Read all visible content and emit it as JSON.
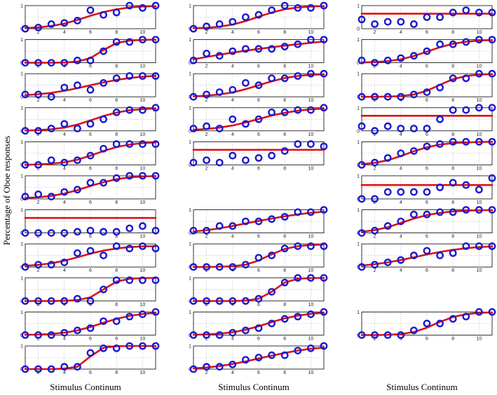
{
  "figure": {
    "y_axis_label": "Percentage of Oboe responses",
    "x_axis_labels": [
      "Stimulus Continum",
      "Stimulus Continum",
      "Stimulus Continum"
    ]
  },
  "colors": {
    "fit": "#dd1111",
    "marker": "#1a1ad0",
    "axis": "#000000",
    "grid": "#9a9a9a"
  },
  "chart_data": {
    "type": "scatter",
    "description": "Grid of psychometric functions: per-panel response proportions (blue circles) with fitted curves (red) over an 11-step stimulus continuum",
    "x": [
      1,
      2,
      3,
      4,
      5,
      6,
      7,
      8,
      9,
      10,
      11
    ],
    "xlim": [
      1,
      11
    ],
    "ylim": [
      0,
      1
    ],
    "x_ticks": [
      2,
      4,
      6,
      8,
      10
    ],
    "y_ticks": [
      0,
      1
    ],
    "columns": [
      [
        {
          "points": [
            0,
            0.05,
            0.2,
            0.25,
            0.35,
            0.8,
            0.6,
            0.7,
            1,
            0.9,
            1
          ],
          "fit": [
            0.03,
            0.06,
            0.12,
            0.22,
            0.38,
            0.56,
            0.72,
            0.84,
            0.92,
            0.96,
            0.98
          ]
        },
        {
          "points": [
            0,
            0,
            0,
            0,
            0.1,
            0.1,
            0.5,
            0.9,
            0.9,
            1,
            1
          ],
          "fit": [
            0,
            0,
            0,
            0.01,
            0.05,
            0.2,
            0.55,
            0.85,
            0.96,
            0.99,
            1
          ]
        },
        {
          "points": [
            0.1,
            0.1,
            0,
            0.4,
            0.5,
            0.3,
            0.6,
            0.8,
            0.9,
            0.9,
            0.9
          ],
          "fit": [
            0.07,
            0.11,
            0.17,
            0.26,
            0.37,
            0.5,
            0.62,
            0.73,
            0.81,
            0.87,
            0.91
          ]
        },
        {
          "points": [
            0,
            0,
            0.1,
            0.3,
            0.1,
            0.3,
            0.5,
            0.8,
            0.9,
            0.9,
            1
          ],
          "fit": [
            0.01,
            0.03,
            0.07,
            0.14,
            0.27,
            0.45,
            0.64,
            0.79,
            0.89,
            0.94,
            0.97
          ]
        },
        {
          "points": [
            0,
            0,
            0.2,
            0.1,
            0.2,
            0.4,
            0.7,
            0.9,
            0.9,
            0.9,
            0.9
          ],
          "fit": [
            0,
            0.02,
            0.05,
            0.11,
            0.22,
            0.4,
            0.6,
            0.77,
            0.88,
            0.94,
            0.97
          ]
        },
        {
          "points": [
            0.1,
            0.2,
            0.1,
            0.3,
            0.4,
            0.7,
            0.7,
            0.9,
            1,
            1,
            1
          ],
          "fit": [
            0.04,
            0.07,
            0.13,
            0.23,
            0.38,
            0.56,
            0.72,
            0.85,
            0.93,
            0.97,
            0.99
          ]
        },
        {
          "points": [
            0,
            0,
            0,
            0,
            0.05,
            0.1,
            0.05,
            0.05,
            0.2,
            0.3,
            0.1
          ],
          "fit": [
            0.65,
            0.65,
            0.65,
            0.65,
            0.65,
            0.65,
            0.65,
            0.65,
            0.65,
            0.65,
            0.65
          ]
        },
        {
          "points": [
            0,
            0.1,
            0.1,
            0.2,
            0.6,
            0.7,
            0.5,
            0.9,
            0.8,
            0.9,
            0.8
          ],
          "fit": [
            0.05,
            0.09,
            0.16,
            0.27,
            0.42,
            0.58,
            0.71,
            0.8,
            0.86,
            0.89,
            0.9
          ]
        },
        {
          "points": [
            0,
            0,
            0,
            0,
            0.1,
            0,
            0.5,
            0.9,
            0.9,
            0.9,
            0.9
          ],
          "fit": [
            0,
            0,
            0,
            0.01,
            0.04,
            0.16,
            0.5,
            0.84,
            0.96,
            0.99,
            1
          ]
        },
        {
          "points": [
            0,
            0,
            0,
            0.1,
            0.2,
            0.3,
            0.6,
            0.6,
            0.8,
            0.9,
            1
          ],
          "fit": [
            0.01,
            0.02,
            0.05,
            0.1,
            0.2,
            0.35,
            0.53,
            0.7,
            0.83,
            0.91,
            0.96
          ]
        },
        {
          "points": [
            0,
            0,
            0,
            0.1,
            0.1,
            0.7,
            0.9,
            0.9,
            1,
            1,
            1
          ],
          "fit": [
            0,
            0,
            0,
            0.02,
            0.1,
            0.55,
            0.92,
            0.99,
            1,
            1,
            1
          ]
        }
      ],
      [
        {
          "points": [
            0,
            0.1,
            0.2,
            0.3,
            0.5,
            0.6,
            0.8,
            1,
            0.9,
            0.9,
            1
          ],
          "fit": [
            0.02,
            0.04,
            0.09,
            0.18,
            0.33,
            0.52,
            0.7,
            0.84,
            0.92,
            0.96,
            0.98
          ]
        },
        {
          "points": [
            0.1,
            0.4,
            0.3,
            0.5,
            0.6,
            0.6,
            0.6,
            0.7,
            0.8,
            1,
            1
          ],
          "fit": [
            0.15,
            0.25,
            0.35,
            0.44,
            0.52,
            0.6,
            0.67,
            0.74,
            0.8,
            0.86,
            0.92
          ]
        },
        {
          "points": [
            0,
            0.1,
            0.2,
            0.3,
            0.6,
            0.5,
            0.8,
            0.8,
            0.9,
            1,
            1
          ],
          "fit": [
            0.02,
            0.05,
            0.1,
            0.19,
            0.33,
            0.5,
            0.67,
            0.81,
            0.9,
            0.95,
            0.97
          ]
        },
        {
          "points": [
            0.1,
            0.2,
            0.1,
            0.5,
            0.3,
            0.5,
            0.8,
            0.8,
            0.9,
            0.9,
            1
          ],
          "fit": [
            0.04,
            0.08,
            0.14,
            0.23,
            0.36,
            0.51,
            0.66,
            0.78,
            0.87,
            0.93,
            0.96
          ]
        },
        {
          "points": [
            0.1,
            0.2,
            0.1,
            0.4,
            0.2,
            0.3,
            0.4,
            0.6,
            0.9,
            0.9,
            0.8
          ],
          "fit": [
            0.65,
            0.65,
            0.65,
            0.65,
            0.65,
            0.65,
            0.65,
            0.65,
            0.65,
            0.65,
            0.65
          ]
        },
        null,
        {
          "points": [
            0.1,
            0.1,
            0.3,
            0.3,
            0.5,
            0.5,
            0.6,
            0.7,
            0.9,
            0.9,
            1
          ],
          "fit": [
            0.06,
            0.12,
            0.2,
            0.3,
            0.41,
            0.52,
            0.62,
            0.72,
            0.8,
            0.87,
            0.92
          ]
        },
        {
          "points": [
            0,
            0,
            0,
            0,
            0.1,
            0.4,
            0.5,
            0.8,
            0.9,
            0.9,
            0.9
          ],
          "fit": [
            0,
            0,
            0.01,
            0.03,
            0.1,
            0.28,
            0.55,
            0.78,
            0.9,
            0.95,
            0.97
          ]
        },
        {
          "points": [
            0,
            0,
            0,
            0,
            0,
            0.1,
            0.4,
            0.8,
            1,
            1,
            1
          ],
          "fit": [
            0,
            0,
            0,
            0,
            0.02,
            0.1,
            0.4,
            0.8,
            0.96,
            0.99,
            1
          ]
        },
        {
          "points": [
            0,
            0,
            0,
            0.1,
            0.2,
            0.3,
            0.5,
            0.7,
            0.8,
            0.9,
            1
          ],
          "fit": [
            0.01,
            0.03,
            0.06,
            0.12,
            0.23,
            0.38,
            0.56,
            0.72,
            0.84,
            0.92,
            0.96
          ]
        },
        {
          "points": [
            0,
            0.1,
            0.1,
            0.2,
            0.4,
            0.5,
            0.6,
            0.6,
            0.8,
            0.9,
            1
          ],
          "fit": [
            0.03,
            0.07,
            0.13,
            0.22,
            0.33,
            0.46,
            0.58,
            0.7,
            0.8,
            0.88,
            0.93
          ]
        }
      ],
      [
        {
          "points": [
            0.4,
            0.2,
            0.3,
            0.3,
            0.2,
            0.5,
            0.5,
            0.7,
            0.8,
            0.7,
            0.7
          ],
          "fit": [
            0.65,
            0.65,
            0.65,
            0.65,
            0.65,
            0.65,
            0.65,
            0.65,
            0.65,
            0.65,
            0.65
          ]
        },
        {
          "points": [
            0.1,
            0,
            0.1,
            0.2,
            0.3,
            0.5,
            0.8,
            0.8,
            0.9,
            1,
            1
          ],
          "fit": [
            0.01,
            0.03,
            0.07,
            0.15,
            0.29,
            0.48,
            0.67,
            0.82,
            0.91,
            0.96,
            0.98
          ]
        },
        {
          "points": [
            0,
            0,
            0,
            0,
            0.1,
            0.2,
            0.4,
            0.8,
            0.8,
            1,
            1
          ],
          "fit": [
            0,
            0,
            0.01,
            0.03,
            0.1,
            0.26,
            0.52,
            0.76,
            0.9,
            0.96,
            0.98
          ]
        },
        {
          "points": [
            0.2,
            0,
            0.2,
            0.1,
            0.1,
            0.1,
            0.5,
            0.9,
            0.9,
            1,
            1
          ],
          "fit": [
            0.65,
            0.65,
            0.65,
            0.65,
            0.65,
            0.65,
            0.65,
            0.65,
            0.65,
            0.65,
            0.65
          ]
        },
        {
          "points": [
            0,
            0.1,
            0.3,
            0.5,
            0.6,
            0.8,
            0.9,
            1,
            1,
            1,
            1
          ],
          "fit": [
            0.03,
            0.09,
            0.2,
            0.38,
            0.59,
            0.76,
            0.88,
            0.94,
            0.97,
            0.99,
            1
          ]
        },
        {
          "points": [
            0,
            0,
            0.3,
            0.3,
            0.3,
            0.3,
            0.5,
            0.7,
            0.6,
            0.4,
            0.9
          ],
          "fit": [
            0.6,
            0.6,
            0.6,
            0.6,
            0.6,
            0.6,
            0.6,
            0.6,
            0.6,
            0.6,
            0.6
          ]
        },
        {
          "points": [
            0,
            0.1,
            0.3,
            0.5,
            0.8,
            0.8,
            0.9,
            0.9,
            1,
            1,
            1
          ],
          "fit": [
            0.05,
            0.12,
            0.25,
            0.43,
            0.62,
            0.77,
            0.87,
            0.93,
            0.96,
            0.98,
            0.99
          ]
        },
        {
          "points": [
            0,
            0.1,
            0.2,
            0.3,
            0.5,
            0.7,
            0.5,
            0.6,
            0.9,
            0.9,
            0.9
          ],
          "fit": [
            0.06,
            0.12,
            0.2,
            0.3,
            0.42,
            0.54,
            0.65,
            0.74,
            0.81,
            0.86,
            0.89
          ]
        },
        null,
        {
          "points": [
            0,
            0,
            0,
            0,
            0.2,
            0.5,
            0.5,
            0.7,
            0.8,
            1,
            1
          ],
          "fit": [
            0,
            0,
            0.01,
            0.04,
            0.13,
            0.32,
            0.57,
            0.78,
            0.9,
            0.96,
            0.98
          ]
        },
        null
      ]
    ]
  }
}
